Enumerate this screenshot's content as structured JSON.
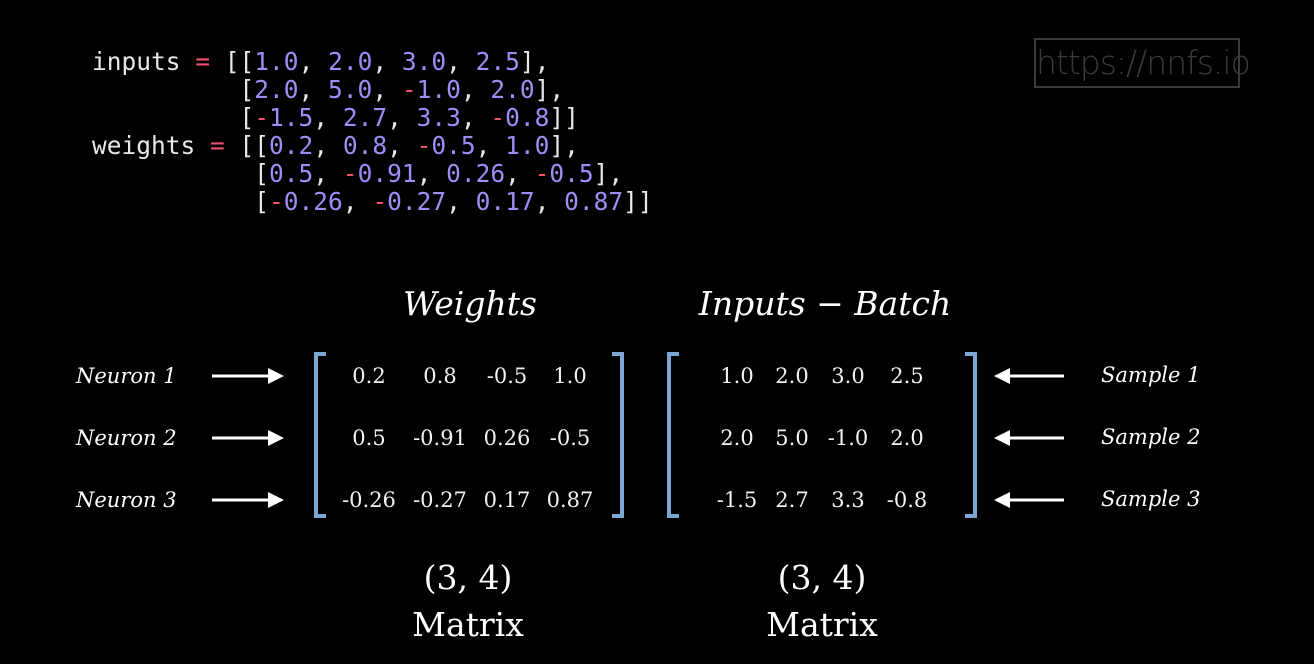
{
  "code": {
    "lines": [
      [
        [
          "inputs ",
          "txt"
        ],
        [
          "=",
          "op"
        ],
        [
          " [[",
          "txt"
        ],
        [
          "1.0",
          "num"
        ],
        [
          ", ",
          "txt"
        ],
        [
          "2.0",
          "num"
        ],
        [
          ", ",
          "txt"
        ],
        [
          "3.0",
          "num"
        ],
        [
          ", ",
          "txt"
        ],
        [
          "2.5",
          "num"
        ],
        [
          "],",
          "txt"
        ]
      ],
      [
        [
          "          [",
          "txt"
        ],
        [
          "2.0",
          "num"
        ],
        [
          ", ",
          "txt"
        ],
        [
          "5.0",
          "num"
        ],
        [
          ", ",
          "txt"
        ],
        [
          "-",
          "neg"
        ],
        [
          "1.0",
          "num"
        ],
        [
          ", ",
          "txt"
        ],
        [
          "2.0",
          "num"
        ],
        [
          "],",
          "txt"
        ]
      ],
      [
        [
          "          [",
          "txt"
        ],
        [
          "-",
          "neg"
        ],
        [
          "1.5",
          "num"
        ],
        [
          ", ",
          "txt"
        ],
        [
          "2.7",
          "num"
        ],
        [
          ", ",
          "txt"
        ],
        [
          "3.3",
          "num"
        ],
        [
          ", ",
          "txt"
        ],
        [
          "-",
          "neg"
        ],
        [
          "0.8",
          "num"
        ],
        [
          "]]",
          "txt"
        ]
      ],
      [
        [
          "weights ",
          "txt"
        ],
        [
          "=",
          "op"
        ],
        [
          " [[",
          "txt"
        ],
        [
          "0.2",
          "num"
        ],
        [
          ", ",
          "txt"
        ],
        [
          "0.8",
          "num"
        ],
        [
          ", ",
          "txt"
        ],
        [
          "-",
          "neg"
        ],
        [
          "0.5",
          "num"
        ],
        [
          ", ",
          "txt"
        ],
        [
          "1.0",
          "num"
        ],
        [
          "],",
          "txt"
        ]
      ],
      [
        [
          "           [",
          "txt"
        ],
        [
          "0.5",
          "num"
        ],
        [
          ", ",
          "txt"
        ],
        [
          "-",
          "neg"
        ],
        [
          "0.91",
          "num"
        ],
        [
          ", ",
          "txt"
        ],
        [
          "0.26",
          "num"
        ],
        [
          ", ",
          "txt"
        ],
        [
          "-",
          "neg"
        ],
        [
          "0.5",
          "num"
        ],
        [
          "],",
          "txt"
        ]
      ],
      [
        [
          "           [",
          "txt"
        ],
        [
          "-",
          "neg"
        ],
        [
          "0.26",
          "num"
        ],
        [
          ", ",
          "txt"
        ],
        [
          "-",
          "neg"
        ],
        [
          "0.27",
          "num"
        ],
        [
          ", ",
          "txt"
        ],
        [
          "0.17",
          "num"
        ],
        [
          ", ",
          "txt"
        ],
        [
          "0.87",
          "num"
        ],
        [
          "]]",
          "txt"
        ]
      ]
    ]
  },
  "watermark": "https://nnfs.io",
  "weights_matrix": {
    "title": "Weights",
    "rows": [
      [
        "0.2",
        "0.8",
        "-0.5",
        "1.0"
      ],
      [
        "0.5",
        "-0.91",
        "0.26",
        "-0.5"
      ],
      [
        "-0.26",
        "-0.27",
        "0.17",
        "0.87"
      ]
    ],
    "row_labels": [
      "Neuron 1",
      "Neuron 2",
      "Neuron 3"
    ],
    "shape": "(3, 4)",
    "kind": "Matrix"
  },
  "inputs_matrix": {
    "title": "Inputs − Batch",
    "rows": [
      [
        "1.0",
        "2.0",
        "3.0",
        "2.5"
      ],
      [
        "2.0",
        "5.0",
        "-1.0",
        "2.0"
      ],
      [
        "-1.5",
        "2.7",
        "3.3",
        "-0.8"
      ]
    ],
    "row_labels": [
      "Sample 1",
      "Sample 2",
      "Sample 3"
    ],
    "shape": "(3, 4)",
    "kind": "Matrix"
  },
  "colors": {
    "background": "#000000",
    "code_text": "#e8e8e8",
    "code_number": "#9b8ff5",
    "code_operator": "#f0506e",
    "bracket": "#7ea6d4",
    "watermark": "#3a3a3a"
  }
}
